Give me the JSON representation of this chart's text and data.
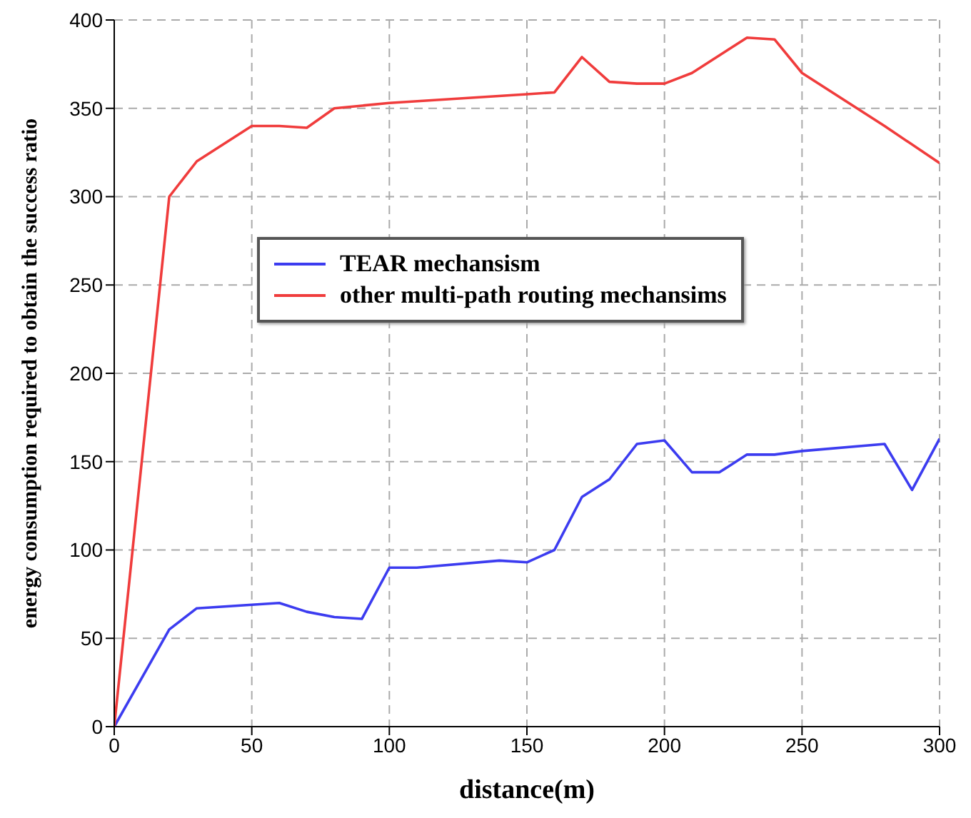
{
  "chart_data": {
    "type": "line",
    "xlabel": "distance(m)",
    "ylabel": "energy consumption required to obtain the success ratio",
    "series": [
      {
        "name": "TEAR mechansism",
        "color": "#3c3cf0",
        "x": [
          0,
          20,
          30,
          50,
          60,
          70,
          80,
          90,
          100,
          110,
          140,
          150,
          160,
          170,
          180,
          190,
          200,
          210,
          220,
          230,
          240,
          250,
          280,
          290,
          300
        ],
        "values": [
          0,
          55,
          67,
          69,
          70,
          65,
          62,
          61,
          90,
          90,
          94,
          93,
          100,
          130,
          140,
          160,
          162,
          144,
          144,
          154,
          154,
          156,
          160,
          134,
          163
        ]
      },
      {
        "name": "other multi-path routing mechansims",
        "color": "#f03c3c",
        "x": [
          0,
          20,
          30,
          50,
          60,
          70,
          80,
          100,
          150,
          160,
          170,
          180,
          190,
          200,
          210,
          230,
          240,
          250,
          280,
          300
        ],
        "values": [
          0,
          300,
          320,
          340,
          340,
          339,
          350,
          353,
          358,
          359,
          379,
          365,
          364,
          364,
          370,
          390,
          389,
          370,
          340,
          319
        ]
      }
    ],
    "xlim": [
      0,
      300
    ],
    "xticks": [
      0,
      50,
      100,
      150,
      200,
      250,
      300
    ],
    "ylim": [
      0,
      400
    ],
    "yticks": [
      0,
      50,
      100,
      150,
      200,
      250,
      300,
      350,
      400
    ],
    "grid": true,
    "legend": "top left",
    "marker": "none",
    "line_style": "solid"
  }
}
